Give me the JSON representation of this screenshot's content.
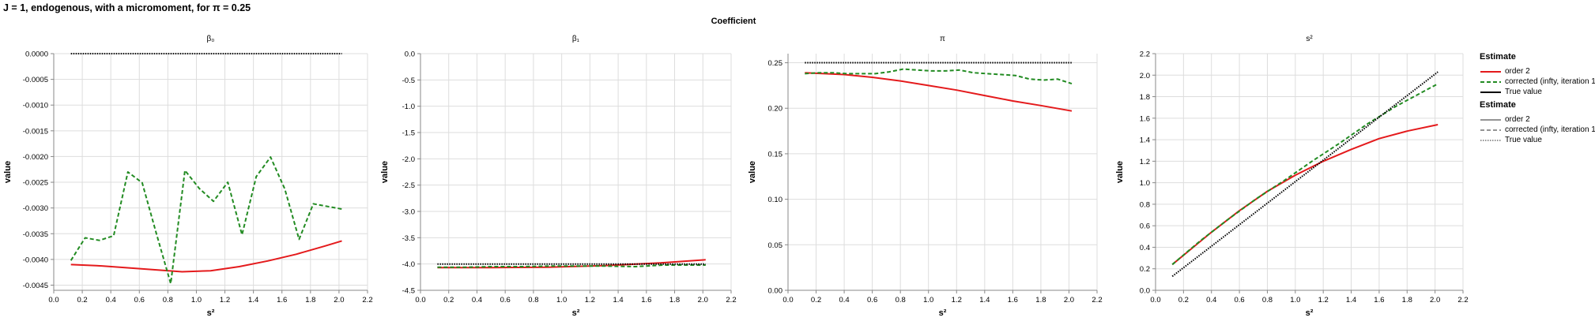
{
  "figure": {
    "title": "J = 1, endogenous, with a micromoment,  for π = 0.25",
    "facet_header": "Coefficient",
    "legend": {
      "color_title": "Estimate",
      "color_items": [
        {
          "label": "order 2",
          "color": "#e41a1c",
          "dash": "solid"
        },
        {
          "label": "corrected (infty, iteration 1)",
          "color": "#228b22",
          "dash": "dashed"
        },
        {
          "label": "True value",
          "color": "#000000",
          "dash": "solid"
        }
      ],
      "dash_title": "Estimate",
      "dash_items": [
        {
          "label": "order 2",
          "color": "#555555",
          "dash": "solid"
        },
        {
          "label": "corrected (infty, iteration 1)",
          "color": "#555555",
          "dash": "dashed"
        },
        {
          "label": "True value",
          "color": "#555555",
          "dash": "dotted"
        }
      ]
    }
  },
  "chart_data": [
    {
      "type": "line",
      "title": "β₀",
      "xlabel": "s²",
      "ylabel": "value",
      "xlim": [
        0,
        2.2
      ],
      "xticks": [
        "0.0",
        "0.2",
        "0.4",
        "0.6",
        "0.8",
        "1.0",
        "1.2",
        "1.4",
        "1.6",
        "1.8",
        "2.0",
        "2.2"
      ],
      "ylim": [
        -0.0046,
        0.0
      ],
      "yticks": [
        "0.0000",
        "-0.0005",
        "-0.0010",
        "-0.0015",
        "-0.0020",
        "-0.0025",
        "-0.0030",
        "-0.0035",
        "-0.0040",
        "-0.0045"
      ],
      "grid": true,
      "series": [
        {
          "name": "order 2",
          "color": "#e41a1c",
          "dash": "solid",
          "x": [
            0.12,
            0.3,
            0.5,
            0.7,
            0.9,
            1.1,
            1.3,
            1.5,
            1.7,
            1.9,
            2.02
          ],
          "y": [
            -0.0041,
            -0.00412,
            -0.00416,
            -0.0042,
            -0.00424,
            -0.00422,
            -0.00414,
            -0.00403,
            -0.0039,
            -0.00374,
            -0.00364
          ]
        },
        {
          "name": "corrected (infty, iteration 1)",
          "color": "#228b22",
          "dash": "dashed",
          "x": [
            0.12,
            0.22,
            0.32,
            0.42,
            0.52,
            0.62,
            0.72,
            0.82,
            0.92,
            1.02,
            1.12,
            1.22,
            1.32,
            1.42,
            1.52,
            1.62,
            1.72,
            1.82,
            1.92,
            2.02
          ],
          "y": [
            -0.00402,
            -0.00358,
            -0.00363,
            -0.00354,
            -0.0023,
            -0.00251,
            -0.0035,
            -0.00447,
            -0.00227,
            -0.00262,
            -0.00287,
            -0.0025,
            -0.00352,
            -0.00239,
            -0.00201,
            -0.00263,
            -0.00361,
            -0.00292,
            -0.00297,
            -0.00302
          ]
        },
        {
          "name": "True value",
          "color": "#000000",
          "dash": "dotted",
          "x": [
            0.12,
            2.02
          ],
          "y": [
            0.0,
            0.0
          ]
        }
      ]
    },
    {
      "type": "line",
      "title": "β₁",
      "xlabel": "s²",
      "ylabel": "value",
      "xlim": [
        0,
        2.2
      ],
      "xticks": [
        "0.0",
        "0.2",
        "0.4",
        "0.6",
        "0.8",
        "1.0",
        "1.2",
        "1.4",
        "1.6",
        "1.8",
        "2.0",
        "2.2"
      ],
      "ylim": [
        -4.5,
        0.0
      ],
      "yticks": [
        "0.0",
        "-0.5",
        "-1.0",
        "-1.5",
        "-2.0",
        "-2.5",
        "-3.0",
        "-3.5",
        "-4.0",
        "-4.5"
      ],
      "grid": true,
      "series": [
        {
          "name": "order 2",
          "color": "#e41a1c",
          "dash": "solid",
          "x": [
            0.12,
            0.5,
            0.9,
            1.3,
            1.7,
            2.02
          ],
          "y": [
            -4.07,
            -4.07,
            -4.06,
            -4.03,
            -3.98,
            -3.92
          ]
        },
        {
          "name": "corrected (infty, iteration 1)",
          "color": "#228b22",
          "dash": "dashed",
          "x": [
            0.12,
            0.32,
            0.52,
            0.72,
            0.92,
            1.12,
            1.32,
            1.52,
            1.72,
            1.92,
            2.02
          ],
          "y": [
            -4.06,
            -4.06,
            -4.05,
            -4.05,
            -4.04,
            -4.04,
            -4.04,
            -4.05,
            -4.02,
            -4.02,
            -4.02
          ]
        },
        {
          "name": "True value",
          "color": "#000000",
          "dash": "dotted",
          "x": [
            0.12,
            2.02
          ],
          "y": [
            -4.0,
            -4.0
          ]
        }
      ]
    },
    {
      "type": "line",
      "title": "π",
      "xlabel": "s²",
      "ylabel": "value",
      "xlim": [
        0,
        2.2
      ],
      "xticks": [
        "0.0",
        "0.2",
        "0.4",
        "0.6",
        "0.8",
        "1.0",
        "1.2",
        "1.4",
        "1.6",
        "1.8",
        "2.0",
        "2.2"
      ],
      "ylim": [
        0.0,
        0.26
      ],
      "yticks": [
        "0.25",
        "0.20",
        "0.15",
        "0.10",
        "0.05",
        "0.00"
      ],
      "ytick_values": [
        0.25,
        0.2,
        0.15,
        0.1,
        0.05,
        0.0
      ],
      "grid": true,
      "series": [
        {
          "name": "order 2",
          "color": "#e41a1c",
          "dash": "solid",
          "x": [
            0.12,
            0.4,
            0.6,
            0.8,
            1.0,
            1.2,
            1.4,
            1.6,
            1.8,
            2.02
          ],
          "y": [
            0.239,
            0.237,
            0.234,
            0.23,
            0.225,
            0.22,
            0.214,
            0.208,
            0.203,
            0.197
          ]
        },
        {
          "name": "corrected (infty, iteration 1)",
          "color": "#228b22",
          "dash": "dashed",
          "x": [
            0.12,
            0.22,
            0.32,
            0.42,
            0.52,
            0.62,
            0.72,
            0.82,
            0.92,
            1.02,
            1.12,
            1.22,
            1.32,
            1.42,
            1.52,
            1.62,
            1.72,
            1.82,
            1.92,
            2.02
          ],
          "y": [
            0.238,
            0.239,
            0.239,
            0.238,
            0.238,
            0.238,
            0.24,
            0.243,
            0.242,
            0.241,
            0.241,
            0.242,
            0.239,
            0.238,
            0.237,
            0.236,
            0.232,
            0.231,
            0.232,
            0.227
          ]
        },
        {
          "name": "True value",
          "color": "#000000",
          "dash": "dotted",
          "x": [
            0.12,
            2.02
          ],
          "y": [
            0.25,
            0.25
          ]
        }
      ]
    },
    {
      "type": "line",
      "title": "s²",
      "xlabel": "s²",
      "ylabel": "value",
      "xlim": [
        0,
        2.2
      ],
      "xticks": [
        "0.0",
        "0.2",
        "0.4",
        "0.6",
        "0.8",
        "1.0",
        "1.2",
        "1.4",
        "1.6",
        "1.8",
        "2.0",
        "2.2"
      ],
      "ylim": [
        0.0,
        2.2
      ],
      "yticks": [
        "2.2",
        "2.0",
        "1.8",
        "1.6",
        "1.4",
        "1.2",
        "1.0",
        "0.8",
        "0.6",
        "0.4",
        "0.2",
        "0.0"
      ],
      "grid": true,
      "series": [
        {
          "name": "order 2",
          "color": "#e41a1c",
          "dash": "solid",
          "x": [
            0.12,
            0.4,
            0.6,
            0.8,
            1.0,
            1.2,
            1.4,
            1.6,
            1.8,
            2.02
          ],
          "y": [
            0.24,
            0.54,
            0.74,
            0.92,
            1.07,
            1.2,
            1.31,
            1.41,
            1.48,
            1.54
          ]
        },
        {
          "name": "corrected (infty, iteration 1)",
          "color": "#228b22",
          "dash": "dashed",
          "x": [
            0.12,
            0.32,
            0.52,
            0.72,
            0.92,
            1.12,
            1.32,
            1.52,
            1.72,
            1.92,
            2.02
          ],
          "y": [
            0.24,
            0.46,
            0.66,
            0.85,
            1.02,
            1.2,
            1.37,
            1.55,
            1.71,
            1.85,
            1.92
          ]
        },
        {
          "name": "True value",
          "color": "#000000",
          "dash": "dotted",
          "x": [
            0.12,
            2.02
          ],
          "y": [
            0.13,
            2.03
          ]
        }
      ]
    }
  ]
}
